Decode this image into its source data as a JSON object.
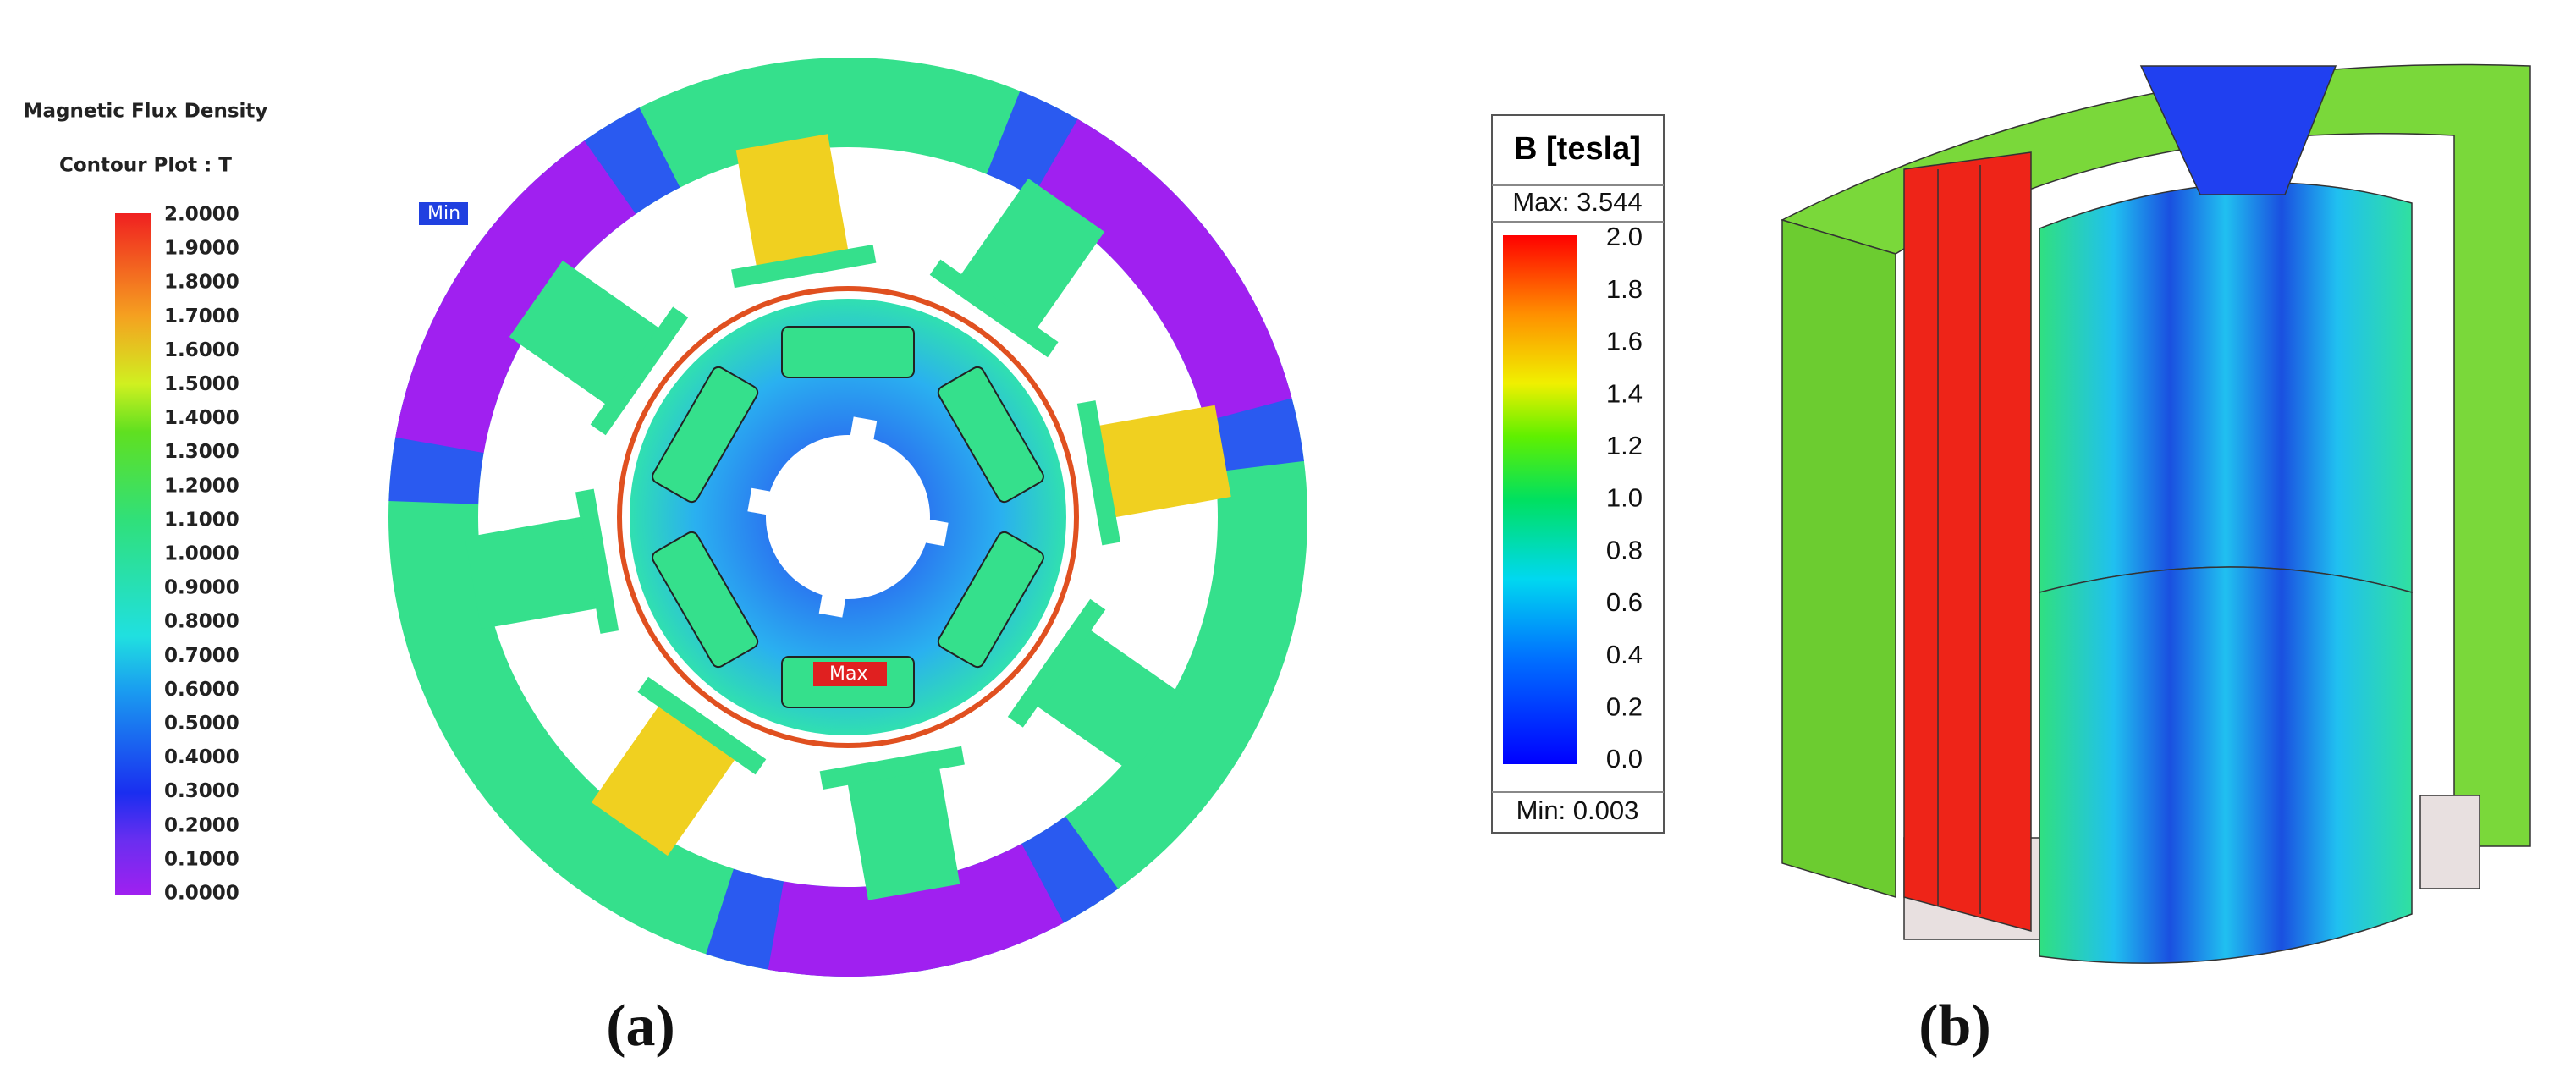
{
  "panel_a": {
    "legend_title": "Magnetic Flux Density",
    "legend_subtitle": "Contour Plot : T",
    "ticks": [
      "2.0000",
      "1.9000",
      "1.8000",
      "1.7000",
      "1.6000",
      "1.5000",
      "1.4000",
      "1.3000",
      "1.2000",
      "1.1000",
      "1.0000",
      "0.9000",
      "0.8000",
      "0.7000",
      "0.6000",
      "0.5000",
      "0.4000",
      "0.3000",
      "0.2000",
      "0.1000",
      "0.0000"
    ],
    "min_marker": "Min",
    "max_marker": "Max",
    "caption": "(a)"
  },
  "panel_b": {
    "legend_title": "B [tesla]",
    "max_label": "Max: 3.544",
    "ticks": [
      "2.0",
      "1.8",
      "1.6",
      "1.4",
      "1.2",
      "1.0",
      "0.8",
      "0.6",
      "0.4",
      "0.2",
      "0.0"
    ],
    "min_label": "Min: 0.003",
    "caption": "(b)"
  }
}
